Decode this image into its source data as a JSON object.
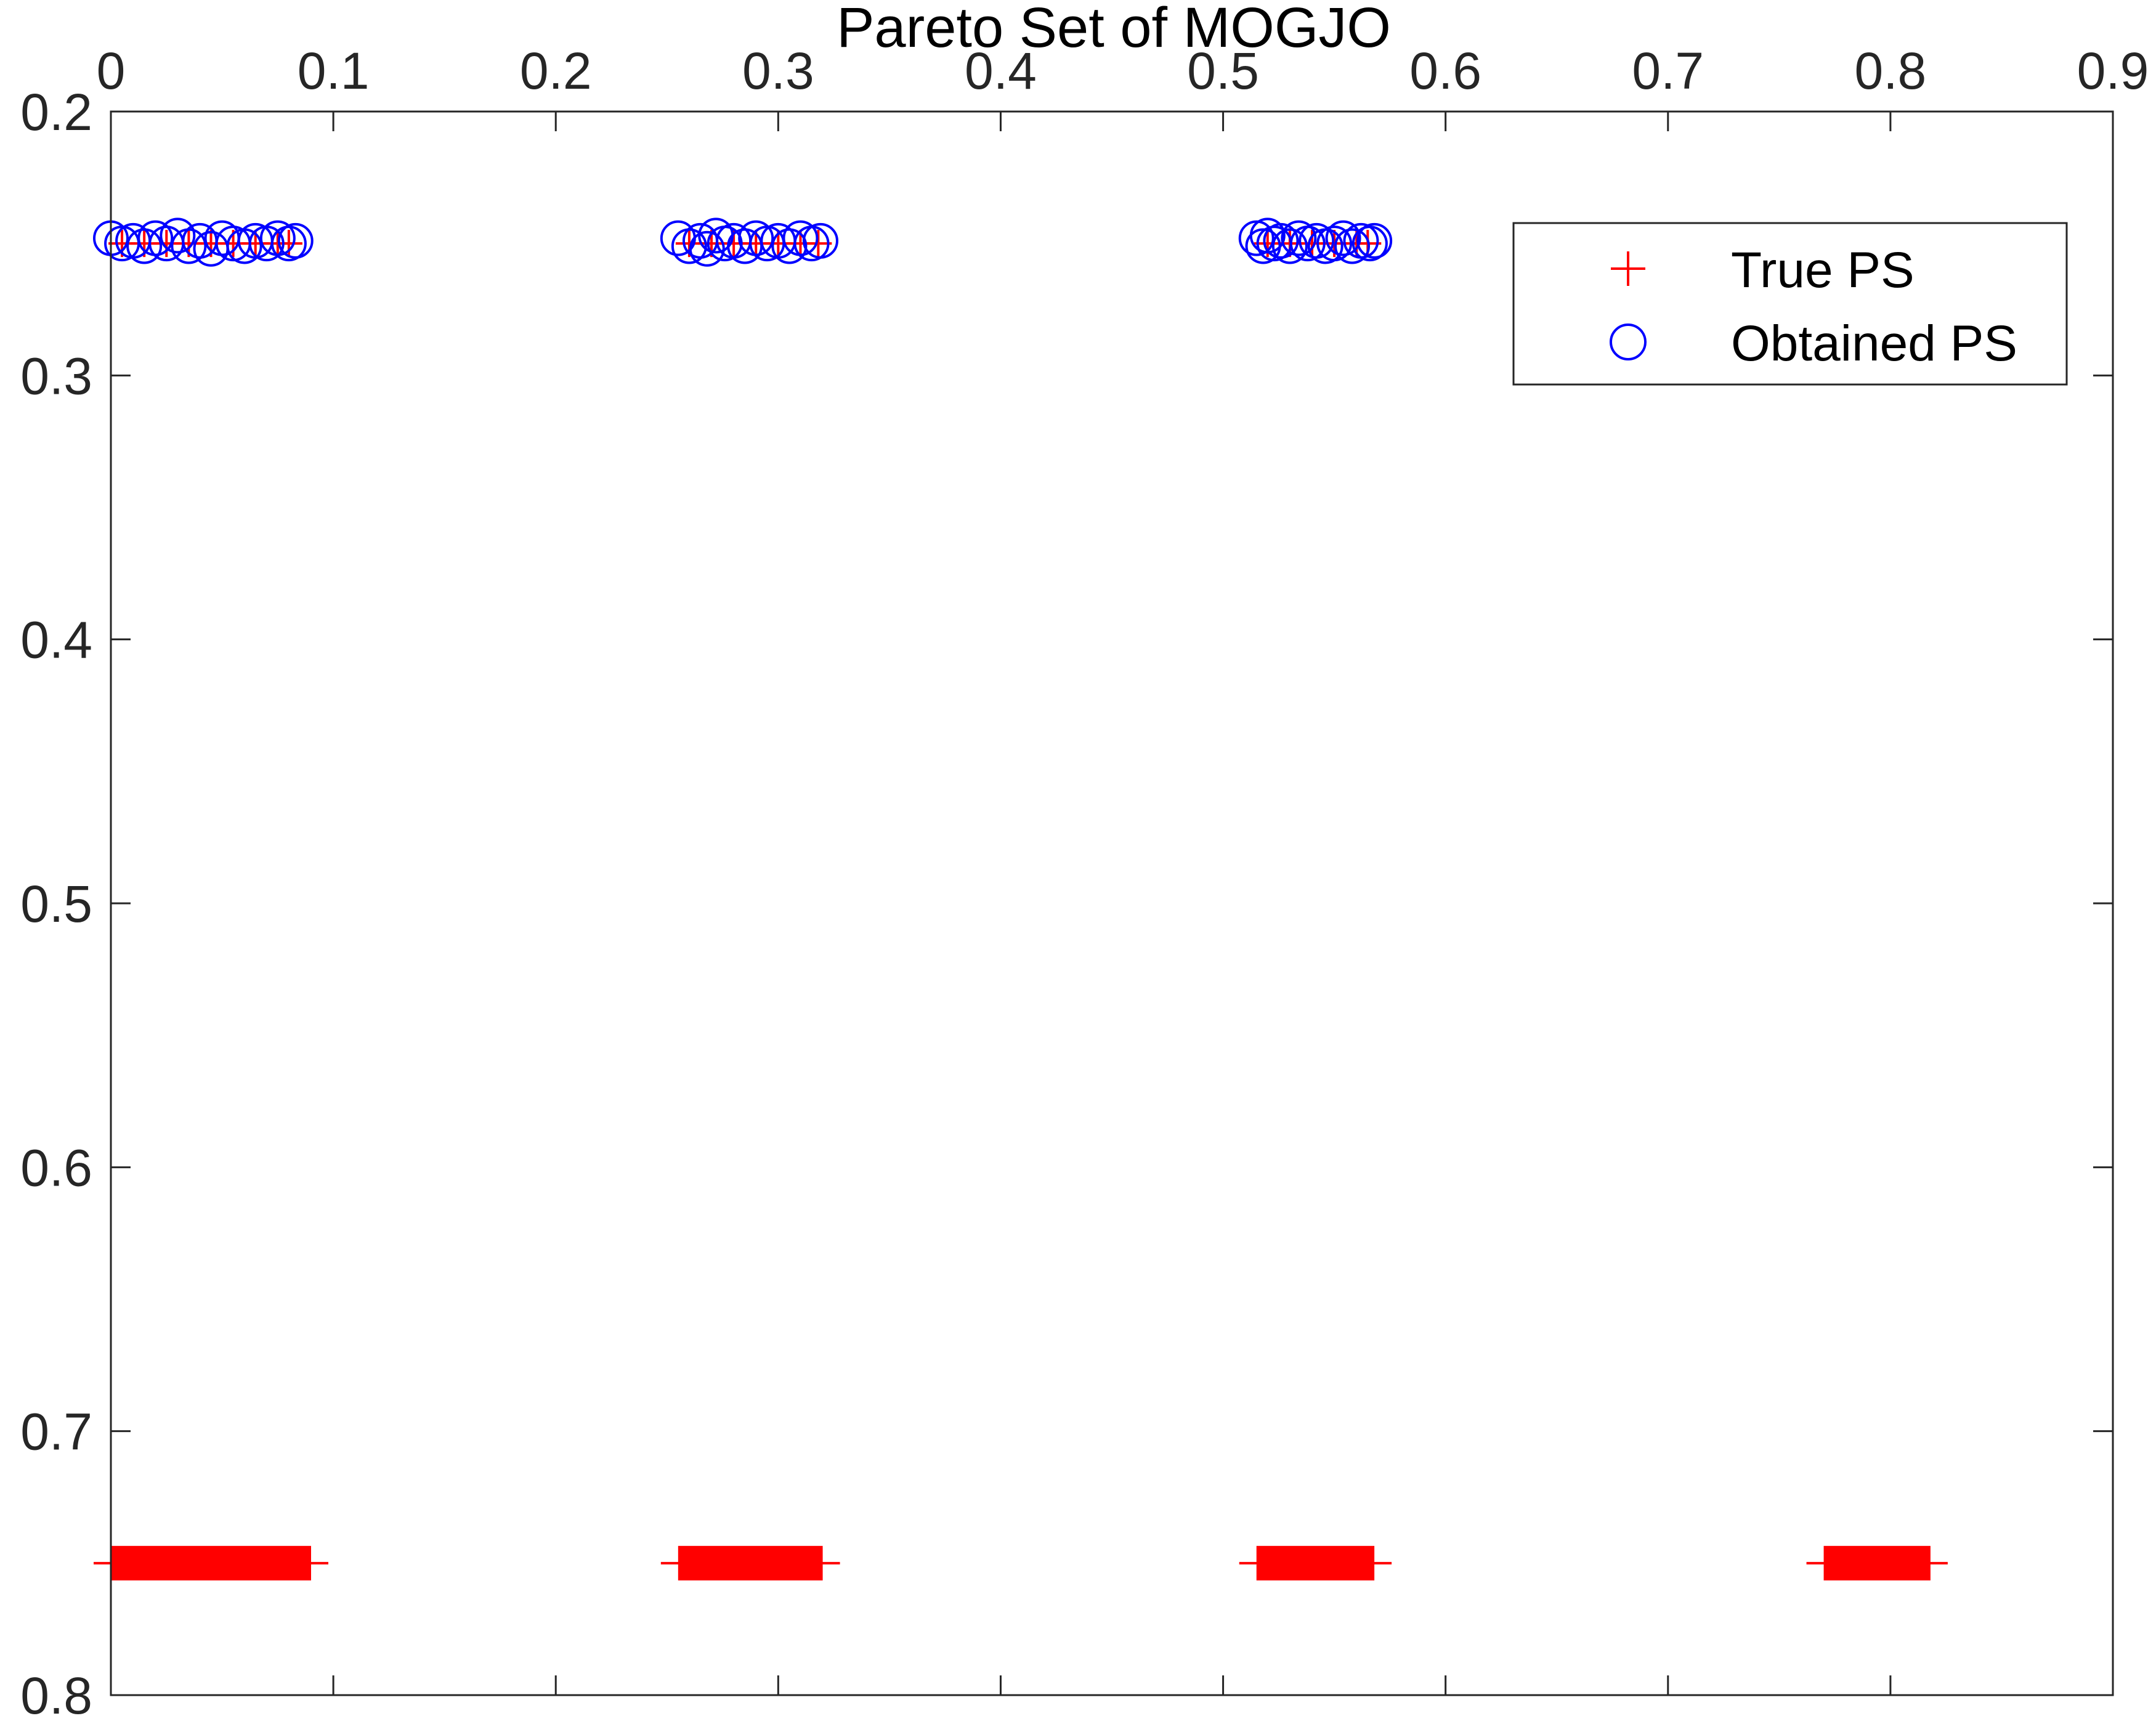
{
  "chart_data": {
    "type": "scatter",
    "title": "Pareto Set of MOGJO",
    "xlabel": "",
    "ylabel": "",
    "xlim": [
      0,
      0.9
    ],
    "ylim": [
      0.2,
      0.8
    ],
    "y_reversed": true,
    "x_axis_location": "top",
    "x_ticks": [
      "0",
      "0.1",
      "0.2",
      "0.3",
      "0.4",
      "0.5",
      "0.6",
      "0.7",
      "0.8",
      "0.9"
    ],
    "y_ticks": [
      "0.2",
      "0.3",
      "0.4",
      "0.5",
      "0.6",
      "0.7",
      "0.8"
    ],
    "grid": false,
    "legend_location": "top-right",
    "colors": {
      "true_ps": "#ff0000",
      "obtained_ps": "#0000ff",
      "axis": "#262626"
    },
    "series": [
      {
        "name": "True PS",
        "marker": "plus",
        "segments": [
          {
            "x_start": 0.0,
            "x_end": 0.09,
            "y": 0.75
          },
          {
            "x_start": 0.255,
            "x_end": 0.32,
            "y": 0.75
          },
          {
            "x_start": 0.515,
            "x_end": 0.568,
            "y": 0.75
          },
          {
            "x_start": 0.77,
            "x_end": 0.818,
            "y": 0.75
          }
        ],
        "points": [
          [
            0.005,
            0.25
          ],
          [
            0.015,
            0.25
          ],
          [
            0.025,
            0.25
          ],
          [
            0.035,
            0.25
          ],
          [
            0.045,
            0.25
          ],
          [
            0.055,
            0.25
          ],
          [
            0.065,
            0.25
          ],
          [
            0.075,
            0.25
          ],
          [
            0.08,
            0.25
          ],
          [
            0.26,
            0.25
          ],
          [
            0.27,
            0.25
          ],
          [
            0.28,
            0.25
          ],
          [
            0.29,
            0.25
          ],
          [
            0.3,
            0.25
          ],
          [
            0.31,
            0.25
          ],
          [
            0.318,
            0.25
          ],
          [
            0.52,
            0.25
          ],
          [
            0.53,
            0.25
          ],
          [
            0.54,
            0.25
          ],
          [
            0.55,
            0.25
          ],
          [
            0.56,
            0.25
          ],
          [
            0.565,
            0.25
          ]
        ]
      },
      {
        "name": "Obtained PS",
        "marker": "circle",
        "points": [
          [
            0.0,
            0.248
          ],
          [
            0.005,
            0.25
          ],
          [
            0.01,
            0.249
          ],
          [
            0.015,
            0.251
          ],
          [
            0.02,
            0.248
          ],
          [
            0.025,
            0.25
          ],
          [
            0.03,
            0.247
          ],
          [
            0.035,
            0.251
          ],
          [
            0.04,
            0.249
          ],
          [
            0.045,
            0.252
          ],
          [
            0.05,
            0.248
          ],
          [
            0.055,
            0.25
          ],
          [
            0.06,
            0.251
          ],
          [
            0.065,
            0.249
          ],
          [
            0.07,
            0.25
          ],
          [
            0.075,
            0.248
          ],
          [
            0.08,
            0.25
          ],
          [
            0.083,
            0.249
          ],
          [
            0.255,
            0.248
          ],
          [
            0.26,
            0.251
          ],
          [
            0.265,
            0.249
          ],
          [
            0.268,
            0.252
          ],
          [
            0.272,
            0.247
          ],
          [
            0.276,
            0.25
          ],
          [
            0.28,
            0.249
          ],
          [
            0.285,
            0.251
          ],
          [
            0.29,
            0.248
          ],
          [
            0.295,
            0.25
          ],
          [
            0.3,
            0.249
          ],
          [
            0.305,
            0.251
          ],
          [
            0.31,
            0.248
          ],
          [
            0.315,
            0.25
          ],
          [
            0.319,
            0.249
          ],
          [
            0.515,
            0.248
          ],
          [
            0.518,
            0.251
          ],
          [
            0.52,
            0.247
          ],
          [
            0.523,
            0.25
          ],
          [
            0.526,
            0.249
          ],
          [
            0.53,
            0.251
          ],
          [
            0.534,
            0.248
          ],
          [
            0.538,
            0.25
          ],
          [
            0.542,
            0.249
          ],
          [
            0.546,
            0.251
          ],
          [
            0.55,
            0.25
          ],
          [
            0.554,
            0.248
          ],
          [
            0.558,
            0.251
          ],
          [
            0.562,
            0.249
          ],
          [
            0.566,
            0.25
          ],
          [
            0.568,
            0.249
          ]
        ]
      }
    ]
  }
}
